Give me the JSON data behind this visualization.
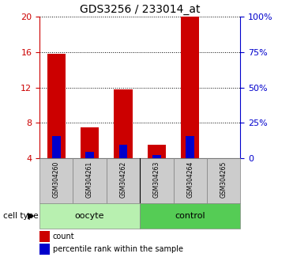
{
  "title": "GDS3256 / 233014_at",
  "samples": [
    "GSM304260",
    "GSM304261",
    "GSM304262",
    "GSM304263",
    "GSM304264",
    "GSM304265"
  ],
  "red_values": [
    15.8,
    7.5,
    11.8,
    5.5,
    20.0,
    4.0
  ],
  "blue_values": [
    6.5,
    4.7,
    5.5,
    4.4,
    6.5,
    4.0
  ],
  "ylim": [
    4,
    20
  ],
  "yticks_left": [
    4,
    8,
    12,
    16,
    20
  ],
  "yticks_right": [
    0,
    25,
    50,
    75,
    100
  ],
  "groups": [
    {
      "label": "oocyte",
      "color": "#b8f0b0",
      "start": 0,
      "end": 3
    },
    {
      "label": "control",
      "color": "#55cc55",
      "start": 3,
      "end": 6
    }
  ],
  "bar_width": 0.55,
  "blue_bar_width": 0.25,
  "red_color": "#cc0000",
  "blue_color": "#0000cc",
  "sample_bg_color": "#cccccc",
  "legend_items": [
    {
      "label": "count",
      "color": "#cc0000"
    },
    {
      "label": "percentile rank within the sample",
      "color": "#0000cc"
    }
  ],
  "bar_bottom": 4.0,
  "n_samples": 6
}
